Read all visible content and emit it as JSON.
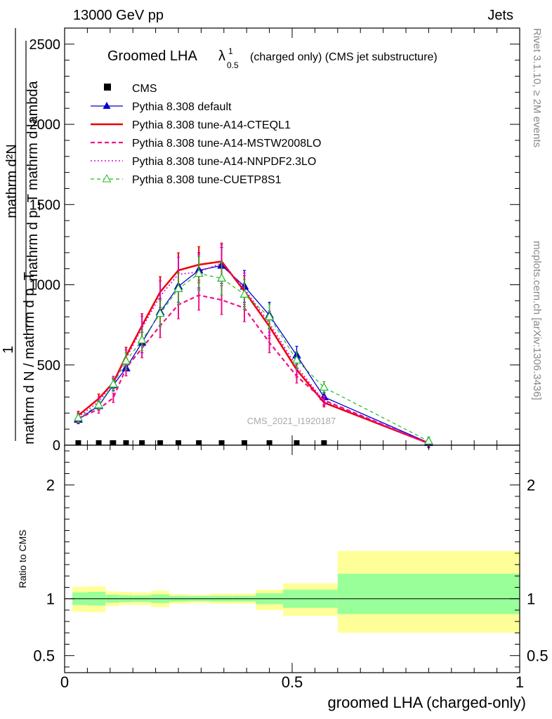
{
  "header": {
    "left": "13000 GeV pp",
    "right": "Jets"
  },
  "main_title": {
    "text": "Groomed LHA",
    "lambda": "λ",
    "sup": "1",
    "sub": "0.5",
    "suffix": "(charged only) (CMS jet substructure)"
  },
  "watermark": "CMS_2021_I1920187",
  "side_labels": {
    "rivet": "Rivet 3.1.10, ≥ 2M events",
    "mcplots": "mcplots.cern.ch [arXiv:1306.3436]"
  },
  "ylabel": {
    "top_num": "mathrm d²N",
    "top_den": "mathrm d p_T mathrm d lambda",
    "one": "1",
    "left": "mathrm d N / mathrm d p_T"
  },
  "ratio_ylabel": "Ratio to CMS",
  "xlabel": "groomed LHA (charged-only)",
  "legend": [
    {
      "label": "CMS",
      "color": "#000000",
      "style": "data"
    },
    {
      "label": "Pythia 8.308 default",
      "color": "#0000cc",
      "style": "solid-triangle"
    },
    {
      "label": "Pythia 8.308 tune-A14-CTEQL1",
      "color": "#ee0000",
      "style": "solid-thick"
    },
    {
      "label": "Pythia 8.308 tune-A14-MSTW2008LO",
      "color": "#ee1188",
      "style": "dashed"
    },
    {
      "label": "Pythia 8.308 tune-A14-NNPDF2.3LO",
      "color": "#dd00dd",
      "style": "dotted"
    },
    {
      "label": "Pythia 8.308 tune-CUETP8S1",
      "color": "#22bb22",
      "style": "dashed-open-triangle"
    }
  ],
  "chart_data": [
    {
      "type": "line",
      "xlim": [
        0,
        1
      ],
      "ylim": [
        0,
        2600
      ],
      "y_ticks": [
        500,
        1000,
        1500,
        2000,
        2500
      ],
      "y_tick_labels": [
        "0",
        "500",
        "1000",
        "1500",
        "2000",
        "2500"
      ],
      "cms": {
        "x": [
          0.03,
          0.075,
          0.107,
          0.135,
          0.17,
          0.21,
          0.25,
          0.295,
          0.345,
          0.395,
          0.45,
          0.51,
          0.57
        ]
      },
      "series": [
        {
          "name": "Pythia 8.308 default",
          "x": [
            0.03,
            0.075,
            0.107,
            0.135,
            0.17,
            0.21,
            0.25,
            0.295,
            0.345,
            0.395,
            0.45,
            0.51,
            0.57,
            0.8
          ],
          "y": [
            160,
            245,
            375,
            480,
            640,
            830,
            990,
            1090,
            1120,
            990,
            810,
            560,
            300,
            15
          ]
        },
        {
          "name": "Pythia 8.308 tune-A14-CTEQL1",
          "x": [
            0.03,
            0.075,
            0.107,
            0.135,
            0.17,
            0.21,
            0.25,
            0.295,
            0.345,
            0.395,
            0.45,
            0.51,
            0.57,
            0.8
          ],
          "y": [
            185,
            290,
            390,
            555,
            745,
            955,
            1090,
            1125,
            1145,
            960,
            740,
            470,
            265,
            12
          ]
        },
        {
          "name": "Pythia 8.308 tune-A14-MSTW2008LO",
          "x": [
            0.03,
            0.075,
            0.107,
            0.135,
            0.17,
            0.21,
            0.25,
            0.295,
            0.345,
            0.395,
            0.45,
            0.51,
            0.57,
            0.8
          ],
          "y": [
            165,
            225,
            295,
            480,
            605,
            745,
            875,
            935,
            905,
            855,
            640,
            430,
            280,
            10
          ]
        },
        {
          "name": "Pythia 8.308 tune-A14-NNPDF2.3LO",
          "x": [
            0.03,
            0.075,
            0.107,
            0.135,
            0.17,
            0.21,
            0.25,
            0.295,
            0.345,
            0.395,
            0.45,
            0.51,
            0.57,
            0.8
          ],
          "y": [
            175,
            270,
            390,
            540,
            730,
            930,
            1065,
            1080,
            1135,
            975,
            760,
            490,
            275,
            12
          ]
        },
        {
          "name": "Pythia 8.308 tune-CUETP8S1",
          "x": [
            0.03,
            0.075,
            0.107,
            0.135,
            0.17,
            0.21,
            0.25,
            0.295,
            0.345,
            0.395,
            0.45,
            0.51,
            0.57,
            0.8
          ],
          "y": [
            170,
            250,
            380,
            525,
            655,
            820,
            975,
            1070,
            1040,
            940,
            800,
            530,
            360,
            25
          ]
        }
      ]
    },
    {
      "type": "area",
      "title": "Ratio to CMS",
      "xlim": [
        0,
        1
      ],
      "ylim": [
        0.35,
        2.35
      ],
      "y_ticks": [
        0.5,
        1,
        2
      ],
      "y_tick_labels": [
        "0.5",
        "1",
        "2"
      ],
      "x_ticks": [
        0,
        0.5,
        1
      ],
      "x_tick_labels": [
        "0",
        "0.5",
        "1"
      ],
      "bins": [
        {
          "x0": 0.0,
          "x1": 0.05,
          "y_lo": 0.885,
          "y_hi": 1.105,
          "g_lo": 0.945,
          "g_hi": 1.055
        },
        {
          "x0": 0.05,
          "x1": 0.09,
          "y_lo": 0.88,
          "y_hi": 1.11,
          "g_lo": 0.94,
          "g_hi": 1.06
        },
        {
          "x0": 0.09,
          "x1": 0.12,
          "y_lo": 0.935,
          "y_hi": 1.065,
          "g_lo": 0.965,
          "g_hi": 1.035
        },
        {
          "x0": 0.12,
          "x1": 0.15,
          "y_lo": 0.945,
          "y_hi": 1.06,
          "g_lo": 0.97,
          "g_hi": 1.03
        },
        {
          "x0": 0.15,
          "x1": 0.19,
          "y_lo": 0.945,
          "y_hi": 1.055,
          "g_lo": 0.972,
          "g_hi": 1.028
        },
        {
          "x0": 0.19,
          "x1": 0.23,
          "y_lo": 0.925,
          "y_hi": 1.07,
          "g_lo": 0.962,
          "g_hi": 1.038
        },
        {
          "x0": 0.23,
          "x1": 0.27,
          "y_lo": 0.955,
          "y_hi": 1.04,
          "g_lo": 0.975,
          "g_hi": 1.025
        },
        {
          "x0": 0.27,
          "x1": 0.32,
          "y_lo": 0.96,
          "y_hi": 1.035,
          "g_lo": 0.978,
          "g_hi": 1.022
        },
        {
          "x0": 0.32,
          "x1": 0.37,
          "y_lo": 0.955,
          "y_hi": 1.045,
          "g_lo": 0.975,
          "g_hi": 1.025
        },
        {
          "x0": 0.37,
          "x1": 0.42,
          "y_lo": 0.955,
          "y_hi": 1.045,
          "g_lo": 0.975,
          "g_hi": 1.025
        },
        {
          "x0": 0.42,
          "x1": 0.48,
          "y_lo": 0.9,
          "y_hi": 1.08,
          "g_lo": 0.952,
          "g_hi": 1.048
        },
        {
          "x0": 0.48,
          "x1": 0.54,
          "y_lo": 0.85,
          "y_hi": 1.135,
          "g_lo": 0.92,
          "g_hi": 1.08
        },
        {
          "x0": 0.54,
          "x1": 0.6,
          "y_lo": 0.85,
          "y_hi": 1.135,
          "g_lo": 0.92,
          "g_hi": 1.08
        },
        {
          "x0": 0.6,
          "x1": 1.0,
          "y_lo": 0.7,
          "y_hi": 1.42,
          "g_lo": 0.865,
          "g_hi": 1.22
        }
      ],
      "band_colors": {
        "outer": "#ffff99",
        "inner": "#99ff99"
      }
    }
  ]
}
